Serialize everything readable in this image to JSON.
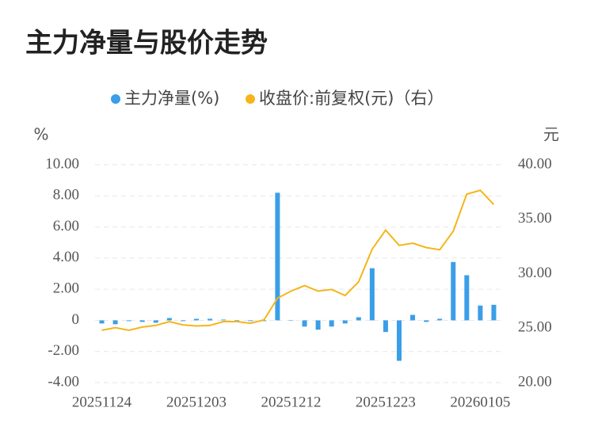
{
  "chart_data": {
    "type": "bar-line",
    "title": "主力净量与股价走势",
    "y_label": "%",
    "y2_label": "元",
    "categories": [
      "20251124",
      null,
      null,
      null,
      null,
      null,
      null,
      "20251203",
      null,
      null,
      null,
      null,
      null,
      null,
      "20251212",
      null,
      null,
      null,
      null,
      null,
      null,
      "20251223",
      null,
      null,
      null,
      null,
      null,
      null,
      "20260105",
      null
    ],
    "series": [
      {
        "name": "主力净量(%)",
        "type": "bar",
        "color": "#3a9ee8",
        "values": [
          -0.2,
          -0.25,
          -0.05,
          -0.1,
          -0.15,
          0.15,
          -0.05,
          0.1,
          0.1,
          0.05,
          -0.1,
          -0.05,
          -0.05,
          8.2,
          0,
          -0.4,
          -0.6,
          -0.4,
          -0.2,
          0.2,
          3.35,
          -0.75,
          -2.6,
          0.35,
          -0.1,
          0.1,
          3.75,
          2.9,
          0.95,
          1.0
        ]
      },
      {
        "name": "收盘价:前复权(元)（右）",
        "type": "line",
        "axis": "y2",
        "color": "#f5b51b",
        "values": [
          24.8,
          25.05,
          24.8,
          25.1,
          25.25,
          25.6,
          25.3,
          25.2,
          25.25,
          25.6,
          25.6,
          25.45,
          25.75,
          27.75,
          28.4,
          28.9,
          28.4,
          28.55,
          28.0,
          29.25,
          32.25,
          34.0,
          32.6,
          32.8,
          32.4,
          32.2,
          33.9,
          37.3,
          37.65,
          36.35
        ]
      }
    ],
    "ylim": [
      -4,
      10
    ],
    "yticks": [
      {
        "value": -4,
        "label": "-4.00"
      },
      {
        "value": -2,
        "label": "-2.00"
      },
      0,
      {
        "value": 2,
        "label": "2.00"
      },
      {
        "value": 4,
        "label": "4.00"
      },
      {
        "value": 6,
        "label": "6.00"
      },
      {
        "value": 8,
        "label": "8.00"
      },
      {
        "value": 10,
        "label": "10.00"
      }
    ],
    "y2lim": [
      20,
      40
    ],
    "y2ticks": [
      {
        "value": 20,
        "label": "20.00"
      },
      {
        "value": 25,
        "label": "25.00"
      },
      {
        "value": 30,
        "label": "30.00"
      },
      {
        "value": 35,
        "label": "35.00"
      },
      {
        "value": 40,
        "label": "40.00"
      }
    ],
    "grid": true,
    "legend": "top"
  }
}
